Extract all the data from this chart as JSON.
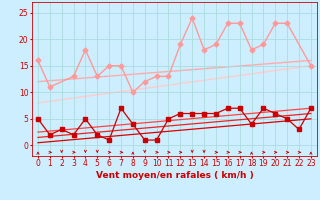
{
  "background_color": "#cceeff",
  "grid_color": "#aadddd",
  "x_label": "Vent moyen/en rafales ( km/h )",
  "x_ticks": [
    0,
    1,
    2,
    3,
    4,
    5,
    6,
    7,
    8,
    9,
    10,
    11,
    12,
    13,
    14,
    15,
    16,
    17,
    18,
    19,
    20,
    21,
    22,
    23
  ],
  "ylim": [
    -2,
    27
  ],
  "xlim": [
    -0.5,
    23.5
  ],
  "y_ticks": [
    0,
    5,
    10,
    15,
    20,
    25
  ],
  "pink_zigzag": {
    "x": [
      0,
      1,
      3,
      4,
      5,
      6,
      7,
      8,
      9,
      10,
      11,
      12,
      13,
      14,
      15,
      16,
      17,
      18,
      19,
      20,
      21,
      23
    ],
    "y": [
      16,
      11,
      13,
      18,
      13,
      15,
      15,
      10,
      12,
      13,
      13,
      19,
      24,
      18,
      19,
      23,
      23,
      18,
      19,
      23,
      23,
      15
    ],
    "color": "#ff9999",
    "linewidth": 1.0,
    "markersize": 2.5
  },
  "pink_trend_upper": {
    "x": [
      0,
      23
    ],
    "y": [
      12,
      16
    ],
    "color": "#ffaaaa",
    "linewidth": 1.0
  },
  "pink_trend_lower": {
    "x": [
      0,
      23
    ],
    "y": [
      8,
      15
    ],
    "color": "#ffcccc",
    "linewidth": 1.0
  },
  "red_zigzag": {
    "x": [
      0,
      1,
      2,
      3,
      4,
      5,
      6,
      7,
      8,
      9,
      10,
      11,
      12,
      13,
      14,
      15,
      16,
      17,
      18,
      19,
      20,
      21,
      22,
      23
    ],
    "y": [
      5,
      2,
      3,
      2,
      5,
      2,
      1,
      7,
      4,
      1,
      1,
      5,
      6,
      6,
      6,
      6,
      7,
      7,
      4,
      7,
      6,
      5,
      3,
      7
    ],
    "color": "#cc0000",
    "linewidth": 0.9,
    "markersize": 2.5
  },
  "red_trend1": {
    "x": [
      0,
      23
    ],
    "y": [
      0.5,
      5.0
    ],
    "color": "#dd0000",
    "linewidth": 0.9
  },
  "red_trend2": {
    "x": [
      0,
      23
    ],
    "y": [
      1.5,
      6.0
    ],
    "color": "#ee2222",
    "linewidth": 0.9
  },
  "red_trend3": {
    "x": [
      0,
      23
    ],
    "y": [
      2.5,
      7.0
    ],
    "color": "#ff4444",
    "linewidth": 0.9
  },
  "wind_arrows": {
    "x": [
      0,
      1,
      2,
      3,
      4,
      5,
      6,
      7,
      8,
      9,
      10,
      11,
      12,
      13,
      14,
      15,
      16,
      17,
      18,
      19,
      20,
      21,
      22,
      23
    ],
    "angles": [
      90,
      0,
      270,
      0,
      270,
      270,
      0,
      0,
      90,
      270,
      0,
      0,
      0,
      270,
      270,
      0,
      0,
      0,
      90,
      0,
      0,
      0,
      0,
      90
    ]
  },
  "tick_label_color": "#cc0000",
  "axis_label_color": "#cc0000",
  "tick_fontsize": 5.5,
  "xlabel_fontsize": 6.5,
  "xlabel_fontweight": "bold"
}
